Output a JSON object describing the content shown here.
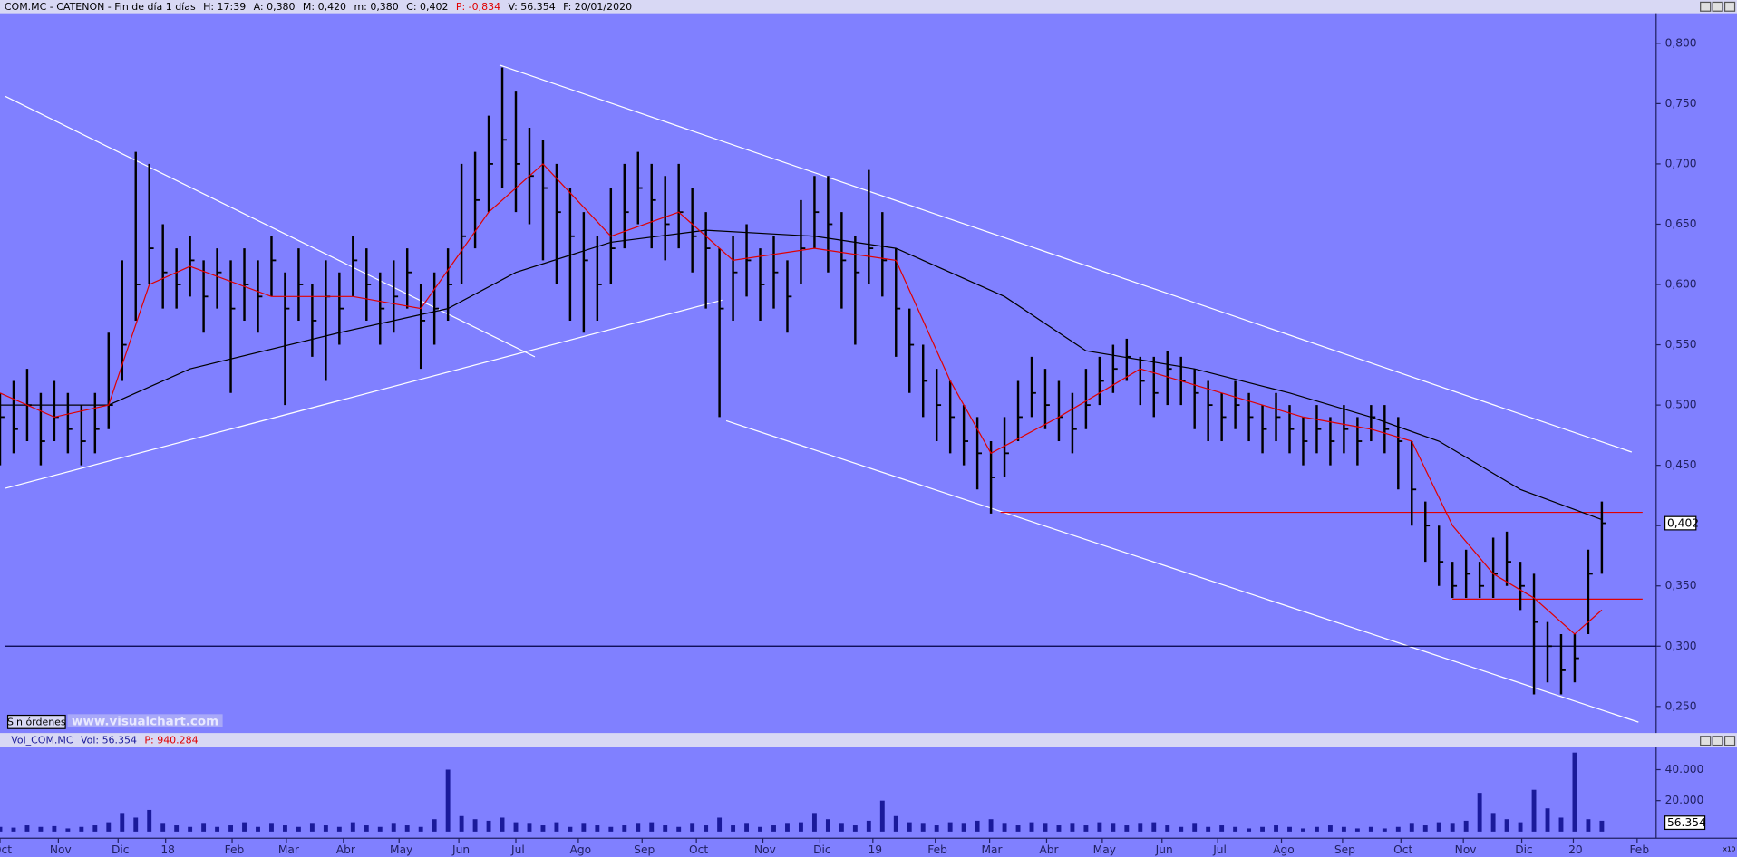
{
  "header": {
    "title": "COM.MC - CATENON - Fin de día 1 días",
    "hour": "H: 17:39",
    "open": "A: 0,380",
    "high": "M: 0,420",
    "low": "m: 0,380",
    "close": "C: 0,402",
    "change": "P: -0,834",
    "volume": "V: 56.354",
    "date": "F: 20/01/2020"
  },
  "volume_header": {
    "title": "Vol_COM.MC",
    "volume": "Vol: 56.354",
    "change": "P: 940.284"
  },
  "button": "Sin órdenes",
  "watermark": "www.visualchart.com",
  "scale_note": "x10",
  "chart_data": [
    {
      "type": "ohlc",
      "close": [
        0.49,
        0.48,
        0.5,
        0.47,
        0.49,
        0.48,
        0.47,
        0.48,
        0.5,
        0.55,
        0.6,
        0.63,
        0.61,
        0.6,
        0.62,
        0.59,
        0.61,
        0.58,
        0.6,
        0.59,
        0.62,
        0.58,
        0.6,
        0.57,
        0.59,
        0.58,
        0.62,
        0.6,
        0.58,
        0.59,
        0.61,
        0.57,
        0.58,
        0.6,
        0.64,
        0.67,
        0.7,
        0.72,
        0.7,
        0.69,
        0.68,
        0.66,
        0.64,
        0.62,
        0.6,
        0.63,
        0.66,
        0.68,
        0.67,
        0.65,
        0.66,
        0.64,
        0.63,
        0.58,
        0.61,
        0.62,
        0.6,
        0.61,
        0.59,
        0.63,
        0.66,
        0.65,
        0.62,
        0.61,
        0.63,
        0.62,
        0.58,
        0.55,
        0.52,
        0.5,
        0.49,
        0.47,
        0.46,
        0.44,
        0.46,
        0.49,
        0.51,
        0.5,
        0.49,
        0.48,
        0.5,
        0.52,
        0.53,
        0.54,
        0.52,
        0.51,
        0.53,
        0.52,
        0.51,
        0.5,
        0.49,
        0.5,
        0.49,
        0.48,
        0.49,
        0.48,
        0.47,
        0.48,
        0.47,
        0.48,
        0.47,
        0.49,
        0.48,
        0.47,
        0.43,
        0.4,
        0.37,
        0.35,
        0.36,
        0.35,
        0.36,
        0.37,
        0.35,
        0.32,
        0.3,
        0.28,
        0.29,
        0.36,
        0.402
      ],
      "high": [
        0.51,
        0.52,
        0.53,
        0.51,
        0.52,
        0.51,
        0.5,
        0.51,
        0.56,
        0.62,
        0.71,
        0.7,
        0.65,
        0.63,
        0.64,
        0.62,
        0.63,
        0.62,
        0.63,
        0.62,
        0.64,
        0.61,
        0.63,
        0.6,
        0.62,
        0.61,
        0.64,
        0.63,
        0.61,
        0.62,
        0.63,
        0.6,
        0.61,
        0.63,
        0.7,
        0.71,
        0.74,
        0.78,
        0.76,
        0.73,
        0.72,
        0.7,
        0.68,
        0.66,
        0.64,
        0.68,
        0.7,
        0.71,
        0.7,
        0.69,
        0.7,
        0.68,
        0.66,
        0.63,
        0.64,
        0.65,
        0.63,
        0.64,
        0.62,
        0.67,
        0.69,
        0.69,
        0.66,
        0.64,
        0.695,
        0.66,
        0.63,
        0.58,
        0.55,
        0.53,
        0.52,
        0.5,
        0.49,
        0.47,
        0.49,
        0.52,
        0.54,
        0.53,
        0.52,
        0.51,
        0.53,
        0.54,
        0.55,
        0.555,
        0.54,
        0.54,
        0.545,
        0.54,
        0.53,
        0.52,
        0.51,
        0.52,
        0.51,
        0.5,
        0.51,
        0.5,
        0.49,
        0.5,
        0.49,
        0.5,
        0.49,
        0.5,
        0.5,
        0.49,
        0.47,
        0.42,
        0.4,
        0.37,
        0.38,
        0.37,
        0.39,
        0.395,
        0.37,
        0.36,
        0.32,
        0.31,
        0.31,
        0.38,
        0.42
      ],
      "low": [
        0.45,
        0.46,
        0.47,
        0.45,
        0.47,
        0.46,
        0.45,
        0.46,
        0.48,
        0.52,
        0.57,
        0.6,
        0.58,
        0.58,
        0.59,
        0.56,
        0.58,
        0.51,
        0.57,
        0.56,
        0.59,
        0.5,
        0.57,
        0.54,
        0.52,
        0.55,
        0.59,
        0.57,
        0.55,
        0.56,
        0.58,
        0.53,
        0.55,
        0.57,
        0.6,
        0.63,
        0.66,
        0.68,
        0.66,
        0.65,
        0.62,
        0.6,
        0.57,
        0.56,
        0.57,
        0.6,
        0.63,
        0.65,
        0.63,
        0.62,
        0.63,
        0.61,
        0.58,
        0.49,
        0.57,
        0.59,
        0.57,
        0.58,
        0.56,
        0.6,
        0.63,
        0.61,
        0.58,
        0.55,
        0.6,
        0.59,
        0.54,
        0.51,
        0.49,
        0.47,
        0.46,
        0.45,
        0.43,
        0.41,
        0.44,
        0.47,
        0.49,
        0.48,
        0.47,
        0.46,
        0.48,
        0.5,
        0.51,
        0.52,
        0.5,
        0.49,
        0.5,
        0.5,
        0.48,
        0.47,
        0.47,
        0.48,
        0.47,
        0.46,
        0.47,
        0.46,
        0.45,
        0.46,
        0.45,
        0.46,
        0.45,
        0.47,
        0.46,
        0.43,
        0.4,
        0.37,
        0.35,
        0.34,
        0.34,
        0.34,
        0.34,
        0.35,
        0.33,
        0.26,
        0.27,
        0.26,
        0.27,
        0.31,
        0.36
      ],
      "color": "#000000",
      "overlays": [
        {
          "color": "#000000",
          "x": [
            0,
            8,
            14,
            25,
            33,
            38,
            45,
            52,
            60,
            66,
            74,
            80,
            88,
            95,
            101,
            106,
            112,
            118
          ],
          "values": [
            0.5,
            0.5,
            0.53,
            0.56,
            0.58,
            0.61,
            0.635,
            0.645,
            0.64,
            0.63,
            0.59,
            0.545,
            0.53,
            0.51,
            0.49,
            0.47,
            0.43,
            0.405
          ]
        },
        {
          "color": "#e00000",
          "x": [
            0,
            4,
            8,
            11,
            14,
            20,
            26,
            31,
            36,
            40,
            45,
            50,
            54,
            60,
            66,
            70,
            73,
            78,
            84,
            90,
            96,
            101,
            104,
            107,
            110,
            113,
            116,
            118
          ],
          "values": [
            0.51,
            0.49,
            0.5,
            0.6,
            0.615,
            0.59,
            0.59,
            0.58,
            0.66,
            0.7,
            0.64,
            0.66,
            0.62,
            0.63,
            0.62,
            0.52,
            0.46,
            0.49,
            0.53,
            0.51,
            0.49,
            0.48,
            0.47,
            0.4,
            0.36,
            0.34,
            0.31,
            0.33
          ]
        }
      ],
      "lines": [
        {
          "color": "#ffffff",
          "x": [
            0.4,
            39.4
          ],
          "y": [
            0.756,
            0.54
          ]
        },
        {
          "color": "#ffffff",
          "x": [
            0.4,
            53.2
          ],
          "y": [
            0.431,
            0.587
          ]
        },
        {
          "color": "#ffffff",
          "x": [
            36.8,
            120.2
          ],
          "y": [
            0.782,
            0.461
          ]
        },
        {
          "color": "#ffffff",
          "x": [
            53.5,
            120.7
          ],
          "y": [
            0.487,
            0.237
          ]
        },
        {
          "color": "#e00000",
          "x": [
            73.7,
            121
          ],
          "y": [
            0.411,
            0.411
          ]
        },
        {
          "color": "#e00000",
          "x": [
            107,
            121
          ],
          "y": [
            0.339,
            0.339
          ]
        },
        {
          "color": "#000040",
          "x": [
            0.4,
            122
          ],
          "y": [
            0.3,
            0.3
          ]
        }
      ],
      "last_label": {
        "value": 0.402,
        "label": "0,402"
      },
      "xlim": [
        0,
        122
      ],
      "ylim": [
        0.228,
        0.824
      ],
      "yticks": [
        {
          "value": 0.25,
          "label": "0,250"
        },
        {
          "value": 0.3,
          "label": "0,300"
        },
        {
          "value": 0.35,
          "label": "0,350"
        },
        {
          "value": 0.4,
          "label": "0,400"
        },
        {
          "value": 0.45,
          "label": "0,450"
        },
        {
          "value": 0.5,
          "label": "0,500"
        },
        {
          "value": 0.55,
          "label": "0,550"
        },
        {
          "value": 0.6,
          "label": "0,600"
        },
        {
          "value": 0.65,
          "label": "0,650"
        },
        {
          "value": 0.7,
          "label": "0,700"
        },
        {
          "value": 0.75,
          "label": "0,750"
        },
        {
          "value": 0.8,
          "label": "0,800"
        }
      ]
    },
    {
      "type": "volume",
      "values": [
        3000,
        2500,
        4000,
        3000,
        3500,
        2000,
        3000,
        4000,
        6000,
        12000,
        9000,
        14000,
        5000,
        4000,
        3000,
        5000,
        3000,
        4000,
        6000,
        3000,
        5000,
        4000,
        3000,
        5000,
        4000,
        3000,
        6000,
        4000,
        3000,
        5000,
        4000,
        3000,
        8000,
        40000,
        10000,
        8000,
        7000,
        9000,
        6000,
        5000,
        4000,
        6000,
        3000,
        5000,
        4000,
        3000,
        4000,
        5000,
        6000,
        4000,
        3000,
        5000,
        4000,
        9000,
        4000,
        5000,
        3000,
        4000,
        5000,
        6000,
        12000,
        8000,
        5000,
        4000,
        7000,
        20000,
        10000,
        6000,
        5000,
        4000,
        6000,
        5000,
        7000,
        8000,
        5000,
        4000,
        6000,
        5000,
        4000,
        5000,
        4000,
        6000,
        5000,
        4000,
        5000,
        6000,
        4000,
        3000,
        5000,
        3000,
        4000,
        3000,
        2000,
        3000,
        4000,
        3000,
        2000,
        3000,
        4000,
        3000,
        2000,
        3000,
        2000,
        3000,
        5000,
        4000,
        6000,
        5000,
        7000,
        25000,
        12000,
        8000,
        6000,
        27000,
        15000,
        9000,
        51000,
        8000,
        7000
      ],
      "color": "#1a1a9a",
      "last_label": "56.354",
      "xlim": [
        0,
        122
      ],
      "ylim": [
        -4300,
        52900
      ],
      "yticks": [
        {
          "value": 20000,
          "label": "20.000"
        },
        {
          "value": 40000,
          "label": "40.000"
        }
      ],
      "xticks": [
        {
          "value": 0,
          "label": "Oct"
        },
        {
          "value": 4.3,
          "label": "Nov"
        },
        {
          "value": 8.7,
          "label": "Dic"
        },
        {
          "value": 12.2,
          "label": "18"
        },
        {
          "value": 17.1,
          "label": "Feb"
        },
        {
          "value": 21.1,
          "label": "Mar"
        },
        {
          "value": 25.3,
          "label": "Abr"
        },
        {
          "value": 29.4,
          "label": "May"
        },
        {
          "value": 33.8,
          "label": "Jun"
        },
        {
          "value": 38,
          "label": "Jul"
        },
        {
          "value": 42.6,
          "label": "Ago"
        },
        {
          "value": 47.3,
          "label": "Sep"
        },
        {
          "value": 51.3,
          "label": "Oct"
        },
        {
          "value": 56.2,
          "label": "Nov"
        },
        {
          "value": 60.4,
          "label": "Dic"
        },
        {
          "value": 64.3,
          "label": "19"
        },
        {
          "value": 68.9,
          "label": "Feb"
        },
        {
          "value": 72.9,
          "label": "Mar"
        },
        {
          "value": 77.1,
          "label": "Abr"
        },
        {
          "value": 81.2,
          "label": "May"
        },
        {
          "value": 85.6,
          "label": "Jun"
        },
        {
          "value": 89.7,
          "label": "Jul"
        },
        {
          "value": 94.4,
          "label": "Ago"
        },
        {
          "value": 98.9,
          "label": "Sep"
        },
        {
          "value": 103.2,
          "label": "Oct"
        },
        {
          "value": 107.8,
          "label": "Nov"
        },
        {
          "value": 112.1,
          "label": "Dic"
        },
        {
          "value": 115.9,
          "label": "20"
        },
        {
          "value": 120.6,
          "label": "Feb"
        }
      ]
    }
  ]
}
